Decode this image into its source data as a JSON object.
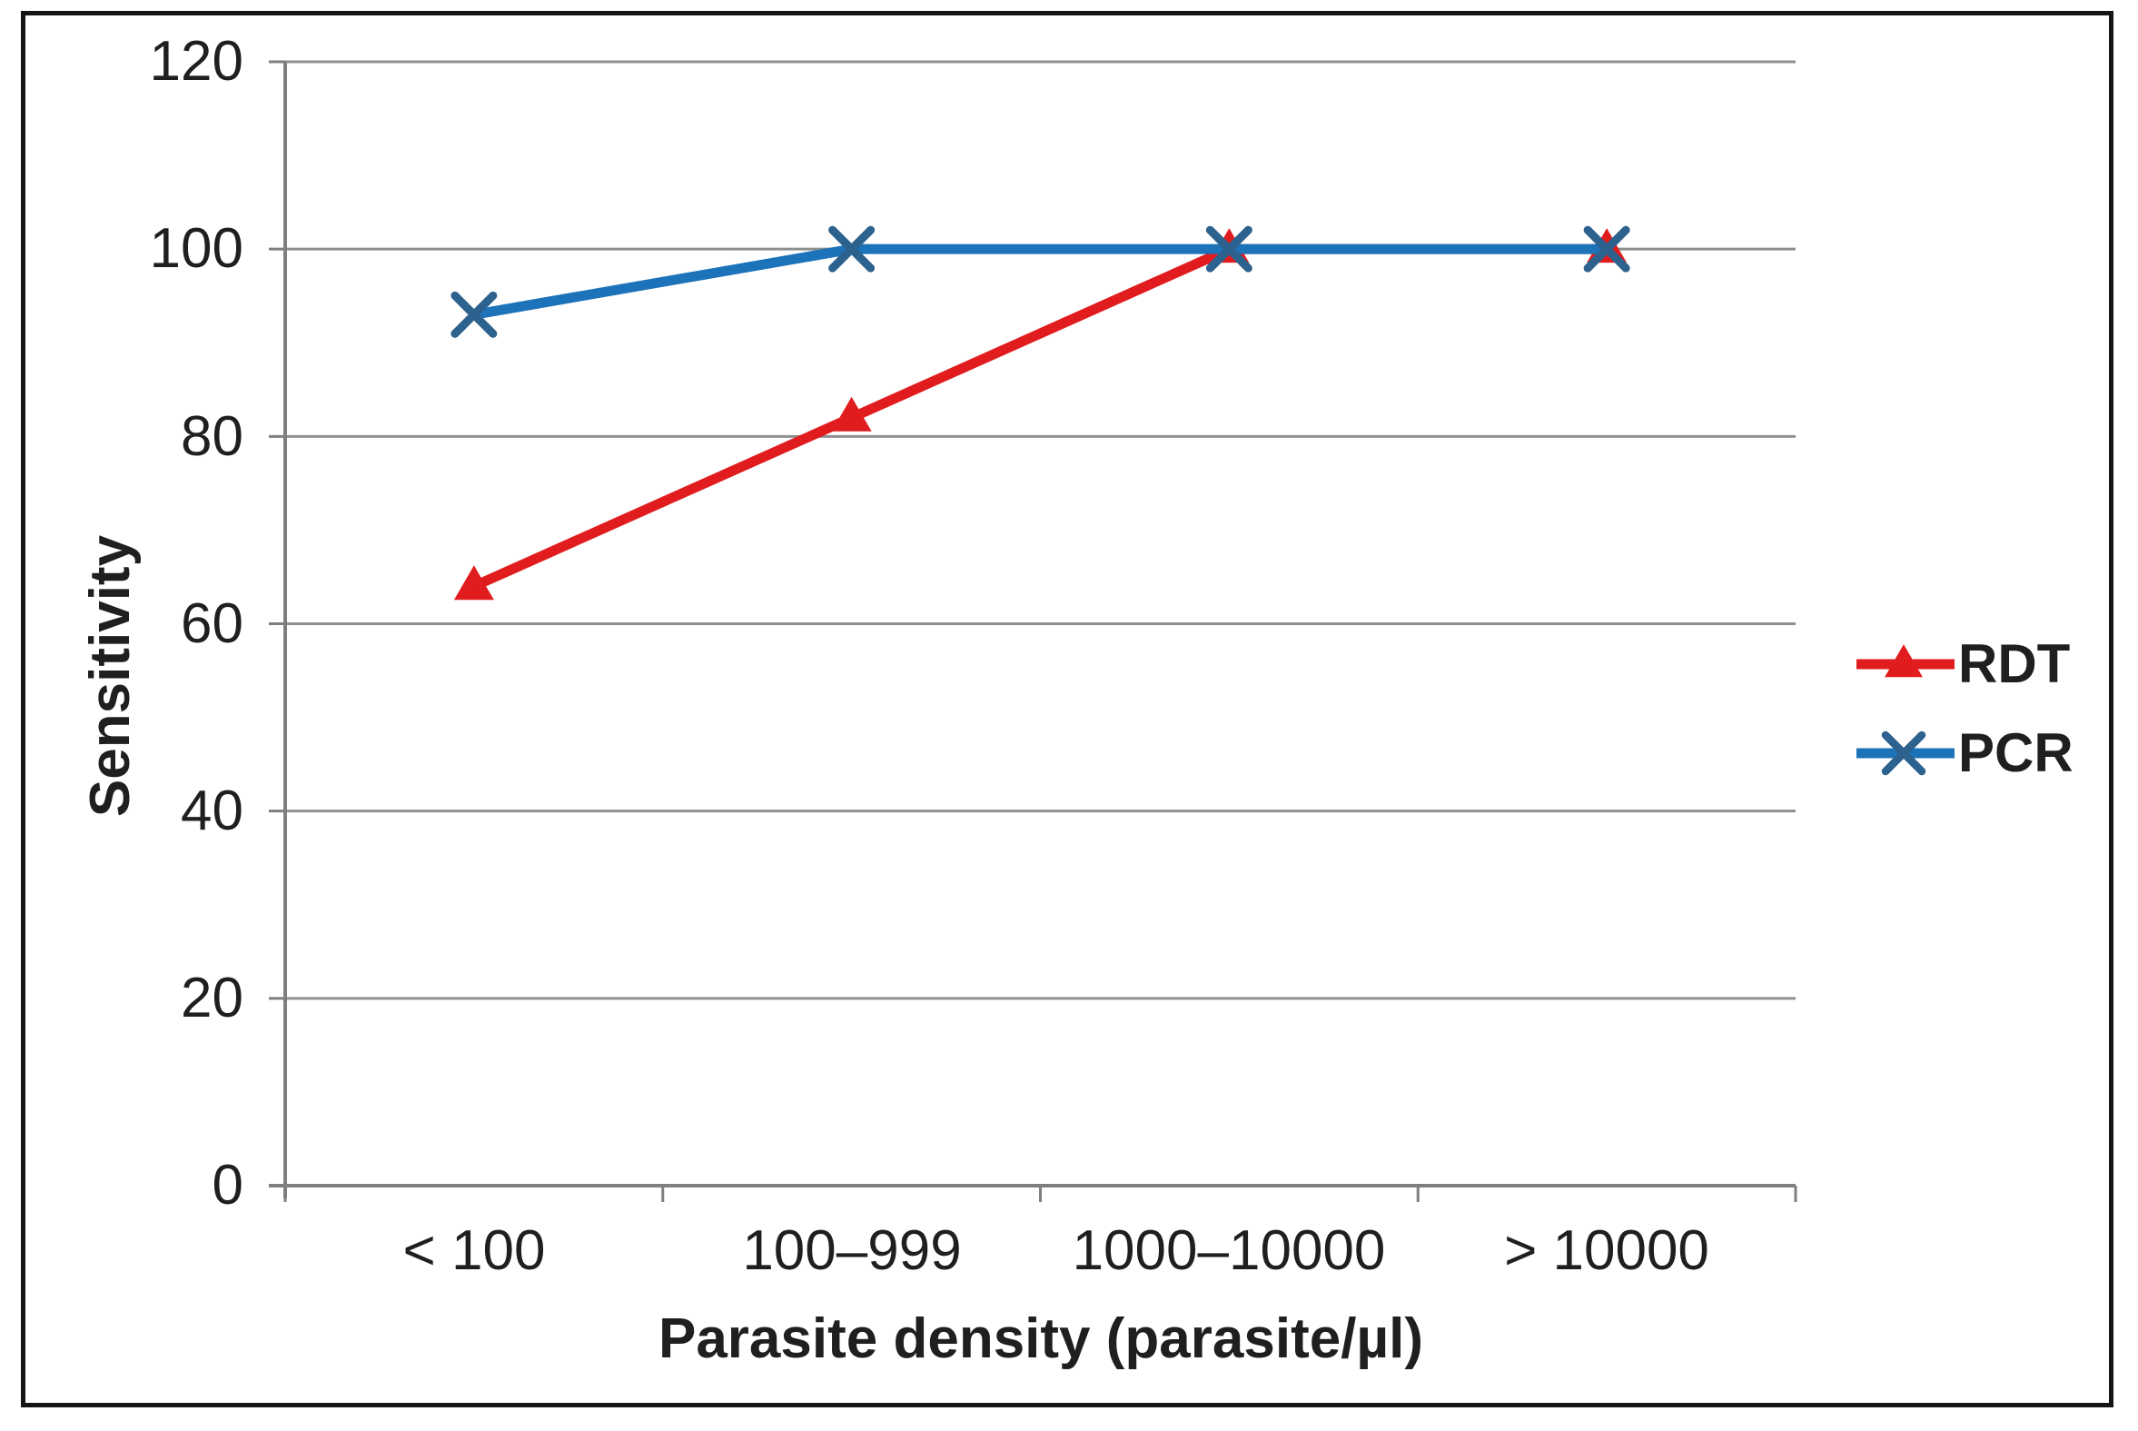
{
  "chart_data": {
    "type": "line",
    "categories": [
      "< 100",
      "100–999",
      "1000–10000",
      "> 10000"
    ],
    "series": [
      {
        "name": "RDT",
        "values": [
          64,
          82,
          100,
          100
        ],
        "color": "#e11c1e",
        "marker": "triangle",
        "marker_color": "#e11c1e"
      },
      {
        "name": "PCR",
        "values": [
          93,
          100,
          100,
          100
        ],
        "color": "#1d73b9",
        "marker": "x",
        "marker_color": "#2d618e"
      }
    ],
    "xlabel": "Parasite density (parasite/µl)",
    "ylabel": "Sensitivity",
    "ylim": [
      0,
      120
    ],
    "ytick_step": 20,
    "ytick_labels": [
      "120",
      "100",
      "80",
      "60",
      "40",
      "20",
      "0"
    ],
    "grid": "horizontal-gridlines-on",
    "legend_position": "right-middle",
    "colors": {
      "gridline": "#8f8f8f",
      "axis": "#7f7f7f",
      "text": "#1f1f1f",
      "background": "#ffffff",
      "frame_border": "#151515"
    }
  }
}
